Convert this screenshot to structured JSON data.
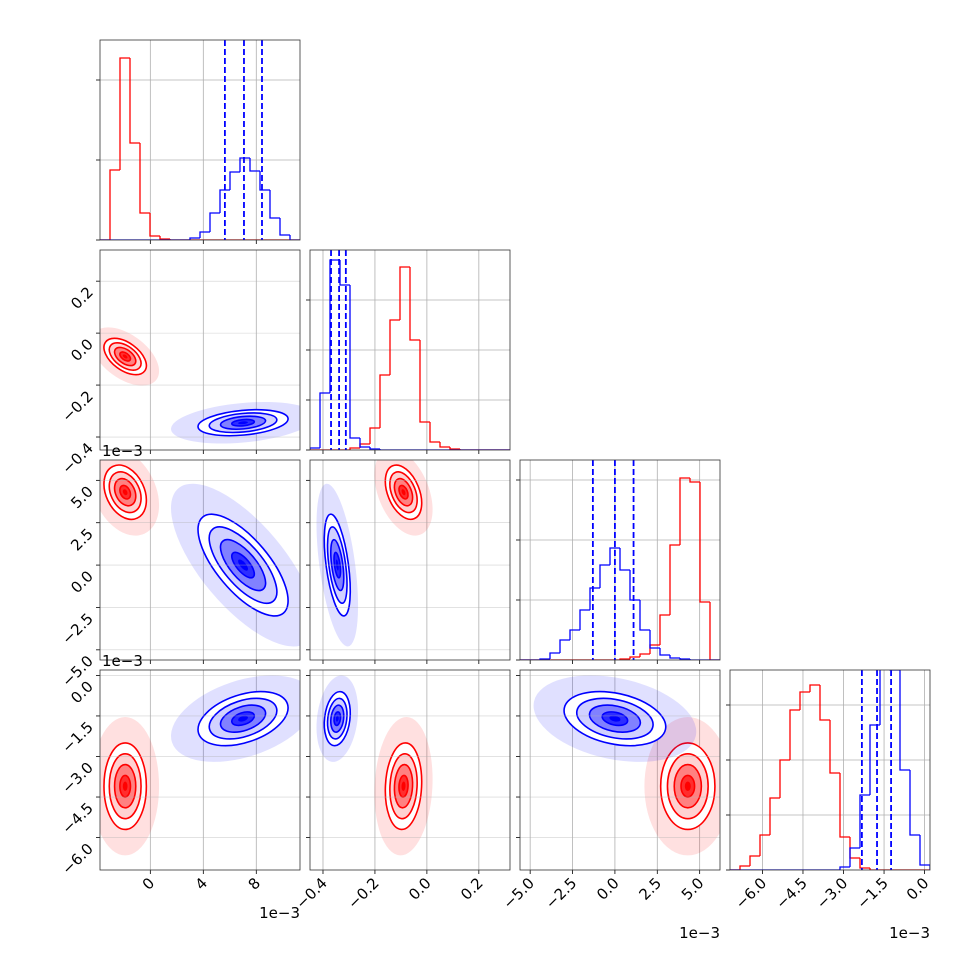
{
  "chart_data": {
    "type": "corner",
    "colors": [
      "#ff0000",
      "#0000ff"
    ],
    "quantile_color": "#0000ff",
    "grid": true,
    "params": [
      {
        "lim": [
          -3.8,
          11.3
        ],
        "ticks": [
          0,
          4,
          8
        ],
        "offset_label": "1e−3",
        "bins": [
          -3.8,
          -3.045,
          -2.29,
          -1.535,
          -0.78,
          -0.025,
          0.73,
          1.485,
          2.24,
          2.995,
          3.75,
          4.505,
          5.26,
          6.015,
          6.77,
          7.525,
          8.28,
          9.035,
          9.79,
          10.545,
          11.3
        ],
        "counts": [
          [
            0,
            70,
            182,
            97,
            27,
            4,
            1,
            0,
            0,
            0,
            0,
            0,
            0,
            0,
            0,
            0,
            0,
            0,
            0,
            0
          ],
          [
            0,
            0,
            0,
            0,
            0,
            0,
            0,
            0,
            0,
            2,
            8,
            27,
            50,
            68,
            82,
            69,
            50,
            22,
            5,
            0
          ]
        ],
        "hist_ylim": [
          0,
          200
        ],
        "hist_yticks": [
          0,
          80,
          160
        ],
        "quantiles": [
          5.63,
          7.07,
          8.43
        ],
        "mean": [
          -1.9,
          7.0
        ],
        "sd": [
          0.8,
          1.7
        ]
      },
      {
        "lim": [
          -0.45,
          0.32
        ],
        "ticks": [
          {
            "value": -0.4,
            "label": "−0.4"
          },
          {
            "value": -0.2,
            "label": "−0.2"
          },
          {
            "value": 0,
            "label": "0.0"
          },
          {
            "value": 0.2,
            "label": "0.2"
          }
        ],
        "bins": [
          -0.45,
          -0.4115,
          -0.373,
          -0.3345,
          -0.296,
          -0.2575,
          -0.219,
          -0.1805,
          -0.142,
          -0.1035,
          -0.065,
          -0.0265,
          0.012,
          0.0505,
          0.089,
          0.1275,
          0.166,
          0.2045,
          0.243,
          0.2815,
          0.32
        ],
        "counts": [
          [
            0,
            0,
            0,
            0,
            2,
            6,
            22,
            75,
            130,
            183,
            110,
            28,
            8,
            3,
            1,
            0,
            0,
            0,
            0,
            0
          ],
          [
            2,
            57,
            190,
            165,
            12,
            3,
            1,
            0,
            0,
            0,
            0,
            0,
            0,
            0,
            0,
            0,
            0,
            0,
            0,
            0
          ]
        ],
        "hist_ylim": [
          0,
          200
        ],
        "hist_yticks": [
          0,
          50,
          100,
          150
        ],
        "quantiles": [
          -0.369,
          -0.338,
          -0.312
        ],
        "mean": [
          -0.09,
          -0.345
        ],
        "sd": [
          0.035,
          0.025
        ]
      },
      {
        "lim": [
          -5.6,
          6.2
        ],
        "ticks": [
          {
            "value": -5,
            "label": "−5.0"
          },
          {
            "value": -2.5,
            "label": "−2.5"
          },
          {
            "value": 0,
            "label": "0.0"
          },
          2.5,
          {
            "value": 5,
            "label": "5.0"
          }
        ],
        "offset_label": "1e−3",
        "bins": [
          -5.6,
          -5.01,
          -4.42,
          -3.83,
          -3.24,
          -2.65,
          -2.06,
          -1.47,
          -0.88,
          -0.29,
          0.3,
          0.89,
          1.48,
          2.07,
          2.66,
          3.25,
          3.84,
          4.43,
          5.02,
          5.61,
          6.2
        ],
        "counts": [
          [
            0,
            0,
            0,
            0,
            0,
            0,
            0,
            0,
            0,
            0,
            1,
            3,
            6,
            15,
            45,
            115,
            182,
            178,
            58,
            0
          ],
          [
            0,
            0,
            1,
            7,
            20,
            30,
            50,
            72,
            95,
            112,
            90,
            60,
            30,
            12,
            5,
            2,
            1,
            0,
            0,
            0
          ]
        ],
        "hist_ylim": [
          0,
          200
        ],
        "hist_yticks": [
          0,
          60,
          120,
          180
        ],
        "quantiles": [
          -1.3,
          0,
          1.1
        ],
        "mean": [
          4.3,
          0.0
        ],
        "sd": [
          0.8,
          1.5
        ]
      },
      {
        "lim": [
          -7.2,
          0.2
        ],
        "ticks": [
          {
            "value": -6,
            "label": "−6.0"
          },
          {
            "value": -4.5,
            "label": "−4.5"
          },
          {
            "value": -3,
            "label": "−3.0"
          },
          {
            "value": -1.5,
            "label": "−1.5"
          },
          {
            "value": 0,
            "label": "0.0"
          }
        ],
        "offset_label": "1e−3",
        "bins": [
          -7.2,
          -6.83,
          -6.46,
          -6.09,
          -5.72,
          -5.35,
          -4.98,
          -4.61,
          -4.24,
          -3.87,
          -3.5,
          -3.13,
          -2.76,
          -2.39,
          -2.02,
          -1.65,
          -1.28,
          -0.91,
          -0.54,
          -0.17,
          0.2
        ],
        "counts": [
          [
            0,
            4,
            14,
            35,
            72,
            110,
            160,
            178,
            185,
            150,
            97,
            33,
            12,
            2,
            0,
            0,
            0,
            0,
            0,
            0
          ],
          [
            0,
            0,
            0,
            0,
            0,
            0,
            0,
            0,
            0,
            0,
            0,
            3,
            22,
            75,
            145,
            210,
            200,
            100,
            35,
            5
          ]
        ],
        "hist_ylim": [
          0,
          200
        ],
        "hist_yticks": [
          0,
          55,
          110,
          165
        ],
        "quantiles": [
          -2.32,
          -1.76,
          -1.24
        ],
        "mean": [
          -4.1,
          -1.6
        ],
        "sd": [
          0.8,
          0.5
        ]
      }
    ],
    "pairs": [
      {
        "pair": [
          0,
          1
        ],
        "corr": [
          -0.5,
          0.3
        ]
      },
      {
        "pair": [
          0,
          2
        ],
        "corr": [
          -0.3,
          -0.7
        ]
      },
      {
        "pair": [
          0,
          3
        ],
        "corr": [
          0.0,
          0.4
        ]
      },
      {
        "pair": [
          1,
          2
        ],
        "corr": [
          -0.4,
          -0.5
        ]
      },
      {
        "pair": [
          1,
          3
        ],
        "corr": [
          0.1,
          0.2
        ]
      },
      {
        "pair": [
          2,
          3
        ],
        "corr": [
          0.0,
          -0.3
        ]
      }
    ]
  }
}
